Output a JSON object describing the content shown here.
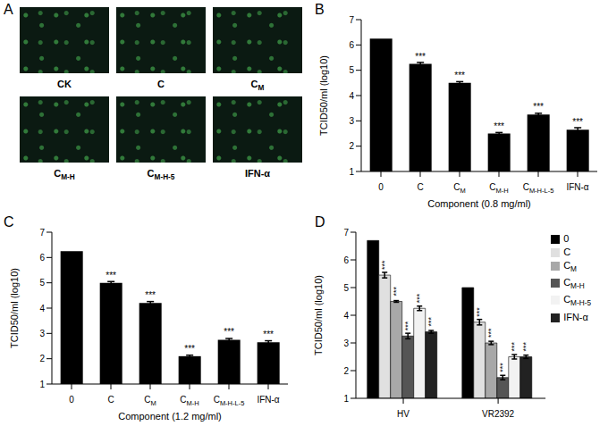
{
  "chart_data": [
    {
      "panel": "B",
      "type": "bar",
      "x_label": "Component (0.8 mg/ml)",
      "y_label": "TCID50/ml (log10)",
      "categories": [
        "0",
        "C",
        "CM",
        "CM-H",
        "CM-H-L-5",
        "IFN-α"
      ],
      "values": [
        6.25,
        5.25,
        4.5,
        2.5,
        3.25,
        2.65
      ],
      "errors": [
        0,
        0.06,
        0.05,
        0.04,
        0.05,
        0.08
      ],
      "significance": [
        null,
        "***",
        "***",
        "***",
        "***",
        "***"
      ],
      "color": "#000000",
      "ylim": [
        1,
        7
      ],
      "yticks": [
        1,
        2,
        3,
        4,
        5,
        6,
        7
      ]
    },
    {
      "panel": "C",
      "type": "bar",
      "x_label": "Component (1.2 mg/ml)",
      "y_label": "TCID50/ml (log10)",
      "categories": [
        "0",
        "C",
        "CM",
        "CM-H",
        "CM-H-L-5",
        "IFN-α"
      ],
      "values": [
        6.25,
        5.0,
        4.2,
        2.1,
        2.75,
        2.65
      ],
      "errors": [
        0,
        0.05,
        0.06,
        0.04,
        0.05,
        0.06
      ],
      "significance": [
        null,
        "***",
        "***",
        "***",
        "***",
        "***"
      ],
      "color": "#000000",
      "ylim": [
        1,
        7
      ],
      "yticks": [
        1,
        2,
        3,
        4,
        5,
        6,
        7
      ]
    },
    {
      "panel": "D",
      "type": "bar",
      "y_label": "TCID50/ml (log10)",
      "categories": [
        "HV",
        "VR2392"
      ],
      "legend": "upper right",
      "series": [
        {
          "name": "0",
          "color": "#000000",
          "values": [
            6.7,
            5.0
          ],
          "errors": [
            0,
            0
          ],
          "significance": [
            null,
            null
          ]
        },
        {
          "name": "C",
          "color": "#e0e0e0",
          "values": [
            5.45,
            3.75
          ],
          "errors": [
            0.1,
            0.1
          ],
          "significance": [
            "***",
            "***"
          ]
        },
        {
          "name": "CM",
          "color": "#a8a8a8",
          "values": [
            4.5,
            3.0
          ],
          "errors": [
            0.03,
            0.06
          ],
          "significance": [
            "***",
            "***"
          ]
        },
        {
          "name": "CM-H",
          "color": "#555555",
          "values": [
            3.25,
            1.75
          ],
          "errors": [
            0.1,
            0.08
          ],
          "significance": [
            "***",
            "***"
          ]
        },
        {
          "name": "CM-H-5",
          "color": "#f2f2f2",
          "values": [
            4.25,
            2.5
          ],
          "errors": [
            0.08,
            0.08
          ],
          "significance": [
            "***",
            "***"
          ]
        },
        {
          "name": "IFN-α",
          "color": "#222222",
          "values": [
            3.4,
            2.5
          ],
          "errors": [
            0.05,
            0.06
          ],
          "significance": [
            "***",
            "***"
          ]
        }
      ],
      "ylim": [
        1,
        7
      ],
      "yticks": [
        1,
        2,
        3,
        4,
        5,
        6,
        7
      ]
    }
  ],
  "images": {
    "panel": "A",
    "labels": [
      "CK",
      "C",
      "CM",
      "CM-H",
      "CM-H-5",
      "IFN-α"
    ]
  }
}
